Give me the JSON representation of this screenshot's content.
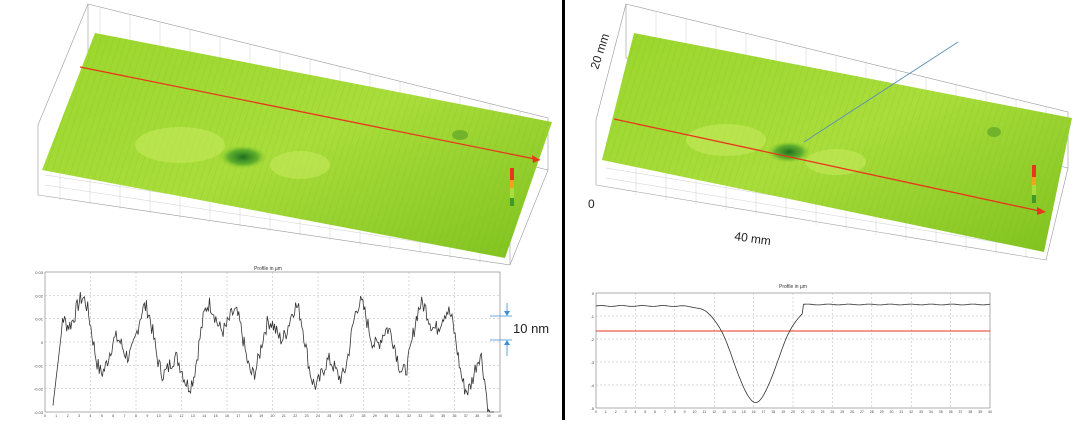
{
  "left": {
    "profile": {
      "title": "Profile in µm",
      "y_ticks": [
        "0.03",
        "0.02",
        "0.01",
        "0",
        "-0.01",
        "-0.02",
        "-0.03"
      ],
      "x_ticks": [
        "0",
        "1",
        "2",
        "3",
        "4",
        "5",
        "6",
        "7",
        "8",
        "9",
        "10",
        "11",
        "12",
        "13",
        "14",
        "15",
        "16",
        "17",
        "18",
        "19",
        "20",
        "21",
        "22",
        "23",
        "24",
        "25",
        "26",
        "27",
        "28",
        "29",
        "30",
        "31",
        "32",
        "33",
        "34",
        "35",
        "36",
        "37",
        "38",
        "39",
        "40"
      ],
      "annotation": "10 nm"
    }
  },
  "right": {
    "surface": {
      "label_width": "40 mm",
      "label_depth": "20 mm",
      "label_origin": "0"
    },
    "profile": {
      "title": "Profile in µm",
      "y_ticks": [
        "0",
        "-1",
        "-2",
        "-3",
        "-4",
        "-5"
      ],
      "x_ticks": [
        "0",
        "1",
        "2",
        "3",
        "4",
        "5",
        "6",
        "7",
        "8",
        "9",
        "10",
        "11",
        "12",
        "13",
        "14",
        "15",
        "16",
        "17",
        "18",
        "19",
        "20",
        "21",
        "22",
        "23",
        "24",
        "25",
        "26",
        "27",
        "28",
        "29",
        "30",
        "31",
        "32",
        "33",
        "34",
        "35",
        "36",
        "37",
        "38",
        "39",
        "40"
      ]
    }
  },
  "colors": {
    "surface_green": "#8fd12a",
    "surface_light": "#b7e34a",
    "dip_dark": "#1f7a1f",
    "section_line": "#e8361c",
    "profile_line": "#333333",
    "reference_line": "#e8361c"
  }
}
